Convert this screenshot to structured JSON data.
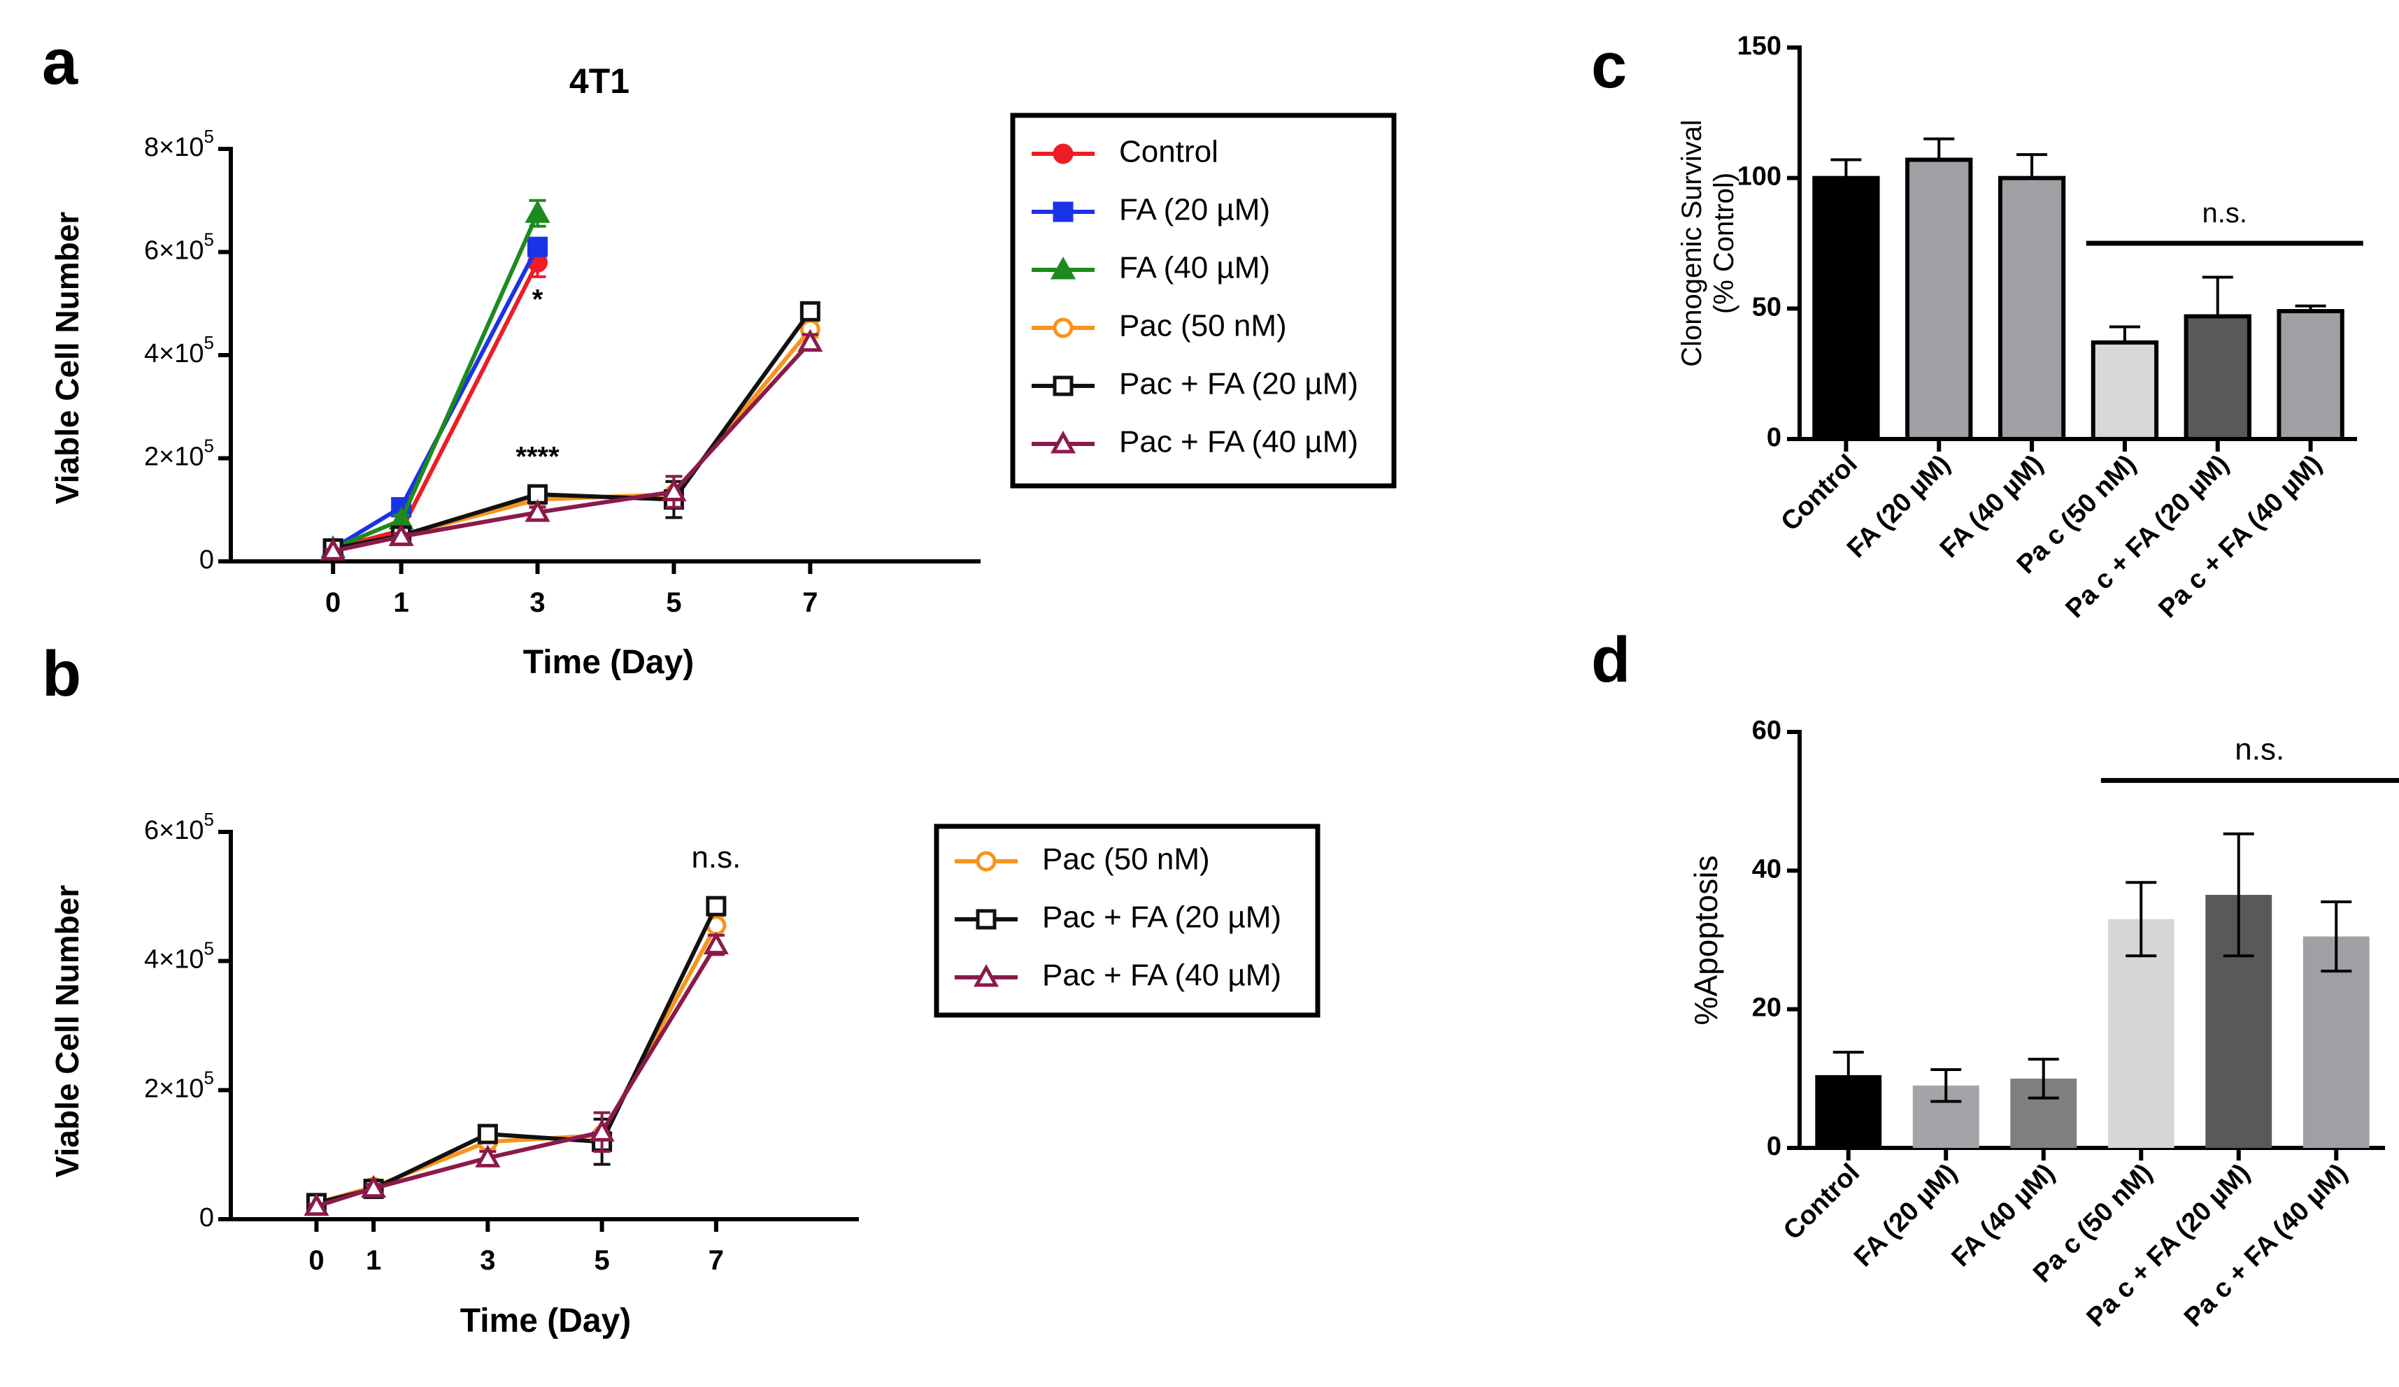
{
  "panel_labels": [
    "a",
    "b",
    "c",
    "d"
  ],
  "legend_a": [
    {
      "label": "Control",
      "color": "#ee1c25",
      "marker": "circle-filled"
    },
    {
      "label": "FA (20 µM)",
      "color": "#1a33e6",
      "marker": "square-filled"
    },
    {
      "label": "FA (40 µM)",
      "color": "#1d8a1d",
      "marker": "triangle-filled"
    },
    {
      "label": "Pac (50 nM)",
      "color": "#f7941d",
      "marker": "circle-open"
    },
    {
      "label": "Pac + FA (20 µM)",
      "color": "#111111",
      "marker": "square-open"
    },
    {
      "label": "Pac + FA (40 µM)",
      "color": "#8b1a4a",
      "marker": "triangle-open"
    }
  ],
  "legend_b": [
    {
      "label": "Pac (50 nM)",
      "color": "#f7941d",
      "marker": "circle-open"
    },
    {
      "label": "Pac + FA (20 µM)",
      "color": "#111111",
      "marker": "square-open"
    },
    {
      "label": "Pac + FA (40 µM)",
      "color": "#8b1a4a",
      "marker": "triangle-open"
    }
  ],
  "chart_data": [
    {
      "id": "a",
      "type": "line",
      "title": "4T1",
      "xlabel": "Time (Day)",
      "ylabel": "Viable Cell Number",
      "x": [
        0,
        1,
        3,
        5,
        7
      ],
      "xlim": [
        -1.5,
        9.5
      ],
      "ylim": [
        0,
        800000
      ],
      "yticks": [
        0,
        200000,
        400000,
        600000,
        800000
      ],
      "ytick_labels": [
        {
          "base": "0",
          "exp": ""
        },
        {
          "base": "2×10",
          "exp": "5"
        },
        {
          "base": "4×10",
          "exp": "5"
        },
        {
          "base": "6×10",
          "exp": "5"
        },
        {
          "base": "8×10",
          "exp": "5"
        }
      ],
      "series": [
        {
          "name": "Control",
          "color": "#ee1c25",
          "marker": "circle-filled",
          "x": [
            0,
            1,
            3
          ],
          "values": [
            25000,
            60000,
            580000
          ],
          "errors": [
            4000,
            10000,
            28000
          ]
        },
        {
          "name": "FA (20 µM)",
          "color": "#1a33e6",
          "marker": "square-filled",
          "x": [
            0,
            1,
            3
          ],
          "values": [
            25000,
            105000,
            610000
          ],
          "errors": [
            4000,
            14000,
            15000
          ]
        },
        {
          "name": "FA (40 µM)",
          "color": "#1d8a1d",
          "marker": "triangle-filled",
          "x": [
            0,
            1,
            3
          ],
          "values": [
            25000,
            80000,
            675000
          ],
          "errors": [
            4000,
            10000,
            25000
          ]
        },
        {
          "name": "Pac (50 nM)",
          "color": "#f7941d",
          "marker": "circle-open",
          "x": [
            0,
            1,
            3,
            5,
            7
          ],
          "values": [
            25000,
            50000,
            120000,
            130000,
            450000
          ],
          "errors": [
            3000,
            6000,
            10000,
            25000,
            15000
          ]
        },
        {
          "name": "Pac + FA (20 µM)",
          "color": "#111111",
          "marker": "square-open",
          "x": [
            0,
            1,
            3,
            5,
            7
          ],
          "values": [
            25000,
            50000,
            130000,
            120000,
            485000
          ],
          "errors": [
            3000,
            6000,
            10000,
            35000,
            12000
          ]
        },
        {
          "name": "Pac + FA (40 µM)",
          "color": "#8b1a4a",
          "marker": "triangle-open",
          "x": [
            0,
            1,
            3,
            5,
            7
          ],
          "values": [
            20000,
            48000,
            95000,
            135000,
            425000
          ],
          "errors": [
            3000,
            6000,
            10000,
            30000,
            15000
          ]
        }
      ],
      "annotations": [
        {
          "text": "*",
          "x": 3,
          "y": 490000
        },
        {
          "text": "****",
          "x": 3,
          "y": 185000
        }
      ]
    },
    {
      "id": "b",
      "type": "line",
      "title": "",
      "xlabel": "Time (Day)",
      "ylabel": "Viable Cell Number",
      "x": [
        0,
        1,
        3,
        5,
        7
      ],
      "xlim": [
        -1.5,
        9.5
      ],
      "ylim": [
        0,
        600000
      ],
      "yticks": [
        0,
        200000,
        400000,
        600000
      ],
      "ytick_labels": [
        {
          "base": "0",
          "exp": ""
        },
        {
          "base": "2×10",
          "exp": "5"
        },
        {
          "base": "4×10",
          "exp": "5"
        },
        {
          "base": "6×10",
          "exp": "5"
        }
      ],
      "series": [
        {
          "name": "Pac (50 nM)",
          "color": "#f7941d",
          "marker": "circle-open",
          "x": [
            0,
            1,
            3,
            5,
            7
          ],
          "values": [
            25000,
            50000,
            120000,
            130000,
            455000
          ],
          "errors": [
            3000,
            6000,
            10000,
            25000,
            15000
          ]
        },
        {
          "name": "Pac + FA (20 µM)",
          "color": "#111111",
          "marker": "square-open",
          "x": [
            0,
            1,
            3,
            5,
            7
          ],
          "values": [
            25000,
            47000,
            132000,
            120000,
            485000
          ],
          "errors": [
            3000,
            6000,
            10000,
            35000,
            10000
          ]
        },
        {
          "name": "Pac + FA (40 µM)",
          "color": "#8b1a4a",
          "marker": "triangle-open",
          "x": [
            0,
            1,
            3,
            5,
            7
          ],
          "values": [
            20000,
            48000,
            95000,
            135000,
            425000
          ],
          "errors": [
            3000,
            6000,
            10000,
            30000,
            15000
          ]
        }
      ],
      "annotations": [
        {
          "text": "n.s.",
          "x": 7,
          "y": 545000
        }
      ]
    },
    {
      "id": "c",
      "type": "bar",
      "title": "",
      "xlabel": "",
      "ylabel": "Clonogenic Survival",
      "ylabel2": "(% Control)",
      "categories": [
        "Control",
        "FA (20 µM)",
        "FA (40 µM)",
        "Pa c (50 nM)",
        "Pa c + FA (20 µM)",
        "Pa c + FA (40 µM)"
      ],
      "values": [
        100,
        107,
        100,
        37,
        47,
        49
      ],
      "errors": [
        7,
        8,
        9,
        6,
        15,
        2
      ],
      "colors": [
        "#000000",
        "#a0a0a4",
        "#a0a0a4",
        "#d8d8d8",
        "#5a5a5a",
        "#a0a0a4"
      ],
      "ylim": [
        0,
        150
      ],
      "yticks": [
        0,
        50,
        100,
        150
      ],
      "ytick_labels": [
        "0",
        "50",
        "100",
        "150"
      ],
      "annotation": {
        "text": "n.s.",
        "span": [
          3,
          5
        ],
        "y": 75
      }
    },
    {
      "id": "d",
      "type": "bar",
      "title": "",
      "xlabel": "",
      "ylabel": "%Apoptosis",
      "ylabel2": "",
      "categories": [
        "Control",
        "FA (20 µM)",
        "FA (40 µM)",
        "Pa c (50 nM)",
        "Pa c + FA (20 µM)",
        "Pa c + FA (40 µM)"
      ],
      "values": [
        10.5,
        9,
        10,
        33,
        36.5,
        30.5
      ],
      "errors": [
        3.3,
        2.3,
        2.8,
        5.3,
        8.8,
        5.0
      ],
      "colors": [
        "#000000",
        "#a4a4a8",
        "#7f7f7f",
        "#d6d6d6",
        "#595959",
        "#a0a0a4"
      ],
      "ylim": [
        0,
        60
      ],
      "yticks": [
        0,
        20,
        40,
        60
      ],
      "ytick_labels": [
        "0",
        "20",
        "40",
        "60"
      ],
      "annotation": {
        "text": "n.s.",
        "span": [
          3,
          5
        ],
        "y": 53
      }
    }
  ]
}
